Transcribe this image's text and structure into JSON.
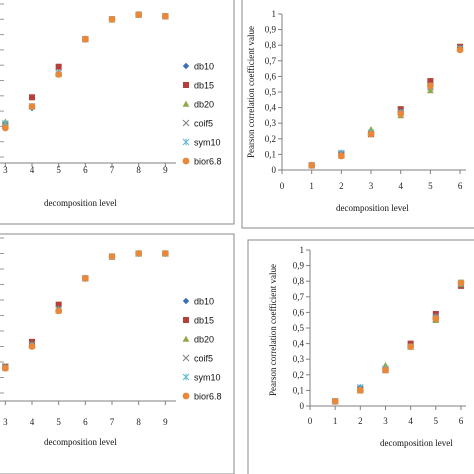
{
  "legend_colors": {
    "db10": "#3d6fb5",
    "db15": "#b5403a",
    "db20": "#8ea84a",
    "coif5": "#7f7f7f",
    "sym10": "#5fb7cf",
    "bior6.8": "#e8883a"
  },
  "chart_data": [
    {
      "type": "scatter",
      "title": "",
      "xlabel": "decomposition level",
      "ylabel": "",
      "x_ticks": [
        "3",
        "4",
        "5",
        "6",
        "7",
        "8",
        "9"
      ],
      "xlim": [
        2.8,
        9.4
      ],
      "ylim": [
        0,
        1
      ],
      "grid": false,
      "legend": "right",
      "series": [
        {
          "name": "db10",
          "x": [
            3,
            4,
            5,
            6,
            7,
            8,
            9
          ],
          "y": [
            0.2,
            0.32,
            0.55,
            0.77,
            0.9,
            0.93,
            0.92
          ]
        },
        {
          "name": "db15",
          "x": [
            3,
            4,
            5,
            6,
            7,
            8,
            9
          ],
          "y": [
            0.21,
            0.39,
            0.59,
            0.77,
            0.9,
            0.93,
            0.92
          ]
        },
        {
          "name": "db20",
          "x": [
            3,
            4,
            5,
            6,
            7,
            8,
            9
          ],
          "y": [
            0.23,
            0.33,
            0.54,
            0.77,
            0.9,
            0.93,
            0.92
          ]
        },
        {
          "name": "coif5",
          "x": [
            3,
            4,
            5,
            6,
            7,
            8,
            9
          ],
          "y": [
            0.21,
            0.33,
            0.55,
            0.77,
            0.9,
            0.93,
            0.92
          ]
        },
        {
          "name": "sym10",
          "x": [
            3,
            4,
            5,
            6,
            7,
            8,
            9
          ],
          "y": [
            0.22,
            0.33,
            0.55,
            0.77,
            0.9,
            0.93,
            0.92
          ]
        },
        {
          "name": "bior6.8",
          "x": [
            3,
            4,
            5,
            6,
            7,
            8,
            9
          ],
          "y": [
            0.19,
            0.33,
            0.54,
            0.77,
            0.9,
            0.93,
            0.92
          ]
        }
      ]
    },
    {
      "type": "scatter",
      "title": "",
      "xlabel": "decomposition level",
      "ylabel": "Pearson correlation coefficient value",
      "x_ticks": [
        "0",
        "1",
        "2",
        "3",
        "4",
        "5",
        "6"
      ],
      "y_ticks": [
        "0",
        "0,1",
        "0,2",
        "0,3",
        "0,4",
        "0,5",
        "0,6",
        "0,7",
        "0,8",
        "0,9",
        "1"
      ],
      "xlim": [
        0,
        6.2
      ],
      "ylim": [
        0,
        1
      ],
      "grid": false,
      "legend": "none",
      "series": [
        {
          "name": "db10",
          "x": [
            1,
            2,
            3,
            4,
            5,
            6
          ],
          "y": [
            0.03,
            0.11,
            0.24,
            0.37,
            0.56,
            0.78
          ]
        },
        {
          "name": "db15",
          "x": [
            1,
            2,
            3,
            4,
            5,
            6
          ],
          "y": [
            0.03,
            0.1,
            0.23,
            0.39,
            0.57,
            0.79
          ]
        },
        {
          "name": "db20",
          "x": [
            1,
            2,
            3,
            4,
            5,
            6
          ],
          "y": [
            0.03,
            0.09,
            0.26,
            0.35,
            0.51,
            0.78
          ]
        },
        {
          "name": "coif5",
          "x": [
            1,
            2,
            3,
            4,
            5,
            6
          ],
          "y": [
            0.03,
            0.1,
            0.23,
            0.37,
            0.53,
            0.78
          ]
        },
        {
          "name": "sym10",
          "x": [
            1,
            2,
            3,
            4,
            5,
            6
          ],
          "y": [
            0.03,
            0.11,
            0.24,
            0.37,
            0.54,
            0.78
          ]
        },
        {
          "name": "bior6.8",
          "x": [
            1,
            2,
            3,
            4,
            5,
            6
          ],
          "y": [
            0.03,
            0.09,
            0.23,
            0.36,
            0.54,
            0.77
          ]
        }
      ]
    },
    {
      "type": "scatter",
      "title": "",
      "xlabel": "decomposition level",
      "ylabel": "",
      "x_ticks": [
        "3",
        "4",
        "5",
        "6",
        "7",
        "8",
        "9"
      ],
      "xlim": [
        2.8,
        9.4
      ],
      "ylim": [
        0,
        1
      ],
      "grid": false,
      "legend": "right",
      "series": [
        {
          "name": "db10",
          "x": [
            3,
            4,
            5,
            6,
            7,
            8,
            9
          ],
          "y": [
            0.17,
            0.31,
            0.54,
            0.74,
            0.88,
            0.9,
            0.9
          ]
        },
        {
          "name": "db15",
          "x": [
            3,
            4,
            5,
            6,
            7,
            8,
            9
          ],
          "y": [
            0.17,
            0.33,
            0.57,
            0.74,
            0.88,
            0.9,
            0.9
          ]
        },
        {
          "name": "db20",
          "x": [
            3,
            4,
            5,
            6,
            7,
            8,
            9
          ],
          "y": [
            0.17,
            0.31,
            0.53,
            0.74,
            0.88,
            0.9,
            0.9
          ]
        },
        {
          "name": "coif5",
          "x": [
            3,
            4,
            5,
            6,
            7,
            8,
            9
          ],
          "y": [
            0.17,
            0.31,
            0.54,
            0.74,
            0.88,
            0.9,
            0.9
          ]
        },
        {
          "name": "sym10",
          "x": [
            3,
            4,
            5,
            6,
            7,
            8,
            9
          ],
          "y": [
            0.16,
            0.31,
            0.54,
            0.74,
            0.88,
            0.9,
            0.9
          ]
        },
        {
          "name": "bior6.8",
          "x": [
            3,
            4,
            5,
            6,
            7,
            8,
            9
          ],
          "y": [
            0.16,
            0.3,
            0.53,
            0.74,
            0.88,
            0.9,
            0.9
          ]
        }
      ]
    },
    {
      "type": "scatter",
      "title": "",
      "xlabel": "decomposition level",
      "ylabel": "Pearson correlation coefficient value",
      "x_ticks": [
        "0",
        "1",
        "2",
        "3",
        "4",
        "5",
        "6"
      ],
      "y_ticks": [
        "0",
        "0,1",
        "0,2",
        "0,3",
        "0,4",
        "0,5",
        "0,6",
        "0,7",
        "0,8",
        "0,9",
        "1"
      ],
      "xlim": [
        0,
        6.2
      ],
      "ylim": [
        0,
        1
      ],
      "grid": false,
      "legend": "none",
      "series": [
        {
          "name": "db10",
          "x": [
            1,
            2,
            3,
            4,
            5,
            6
          ],
          "y": [
            0.03,
            0.12,
            0.24,
            0.38,
            0.57,
            0.79
          ]
        },
        {
          "name": "db15",
          "x": [
            1,
            2,
            3,
            4,
            5,
            6
          ],
          "y": [
            0.03,
            0.1,
            0.23,
            0.4,
            0.59,
            0.77
          ]
        },
        {
          "name": "db20",
          "x": [
            1,
            2,
            3,
            4,
            5,
            6
          ],
          "y": [
            0.03,
            0.1,
            0.26,
            0.38,
            0.55,
            0.78
          ]
        },
        {
          "name": "coif5",
          "x": [
            1,
            2,
            3,
            4,
            5,
            6
          ],
          "y": [
            0.03,
            0.11,
            0.23,
            0.38,
            0.56,
            0.78
          ]
        },
        {
          "name": "sym10",
          "x": [
            1,
            2,
            3,
            4,
            5,
            6
          ],
          "y": [
            0.03,
            0.12,
            0.24,
            0.38,
            0.57,
            0.79
          ]
        },
        {
          "name": "bior6.8",
          "x": [
            1,
            2,
            3,
            4,
            5,
            6
          ],
          "y": [
            0.03,
            0.1,
            0.23,
            0.38,
            0.56,
            0.79
          ]
        }
      ]
    }
  ]
}
